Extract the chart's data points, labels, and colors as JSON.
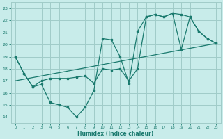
{
  "xlabel": "Humidex (Indice chaleur)",
  "bg_color": "#c8ecea",
  "grid_color": "#a0ccc8",
  "line_color": "#1a7a6e",
  "xlim": [
    -0.5,
    23.5
  ],
  "ylim": [
    13.5,
    23.5
  ],
  "yticks": [
    14,
    15,
    16,
    17,
    18,
    19,
    20,
    21,
    22,
    23
  ],
  "xticks": [
    0,
    1,
    2,
    3,
    4,
    5,
    6,
    7,
    8,
    9,
    10,
    11,
    12,
    13,
    14,
    15,
    16,
    17,
    18,
    19,
    20,
    21,
    22,
    23
  ],
  "line1_x": [
    0,
    1,
    2,
    3,
    4,
    5,
    6,
    7,
    8,
    9,
    10,
    11,
    12,
    13,
    14,
    15,
    16,
    17,
    18,
    19,
    20,
    21,
    22,
    23
  ],
  "line1_y": [
    19.0,
    17.6,
    16.5,
    16.7,
    15.2,
    15.0,
    14.8,
    14.0,
    14.8,
    16.2,
    20.5,
    20.4,
    19.0,
    16.8,
    21.1,
    22.3,
    22.5,
    22.3,
    22.6,
    22.5,
    22.3,
    21.1,
    20.5,
    20.1
  ],
  "line2_x": [
    0,
    1,
    2,
    3,
    4,
    5,
    6,
    7,
    8,
    9,
    10,
    11,
    12,
    13,
    14,
    15,
    16,
    17,
    18,
    19,
    20,
    21,
    22,
    23
  ],
  "line2_y": [
    19.0,
    17.6,
    16.5,
    17.0,
    17.2,
    17.2,
    17.2,
    17.3,
    17.4,
    16.8,
    18.0,
    17.9,
    18.0,
    17.0,
    18.0,
    22.3,
    22.5,
    22.3,
    22.6,
    19.6,
    22.3,
    21.1,
    20.5,
    20.1
  ],
  "line3_x": [
    0,
    23
  ],
  "line3_y": [
    17.0,
    20.1
  ]
}
